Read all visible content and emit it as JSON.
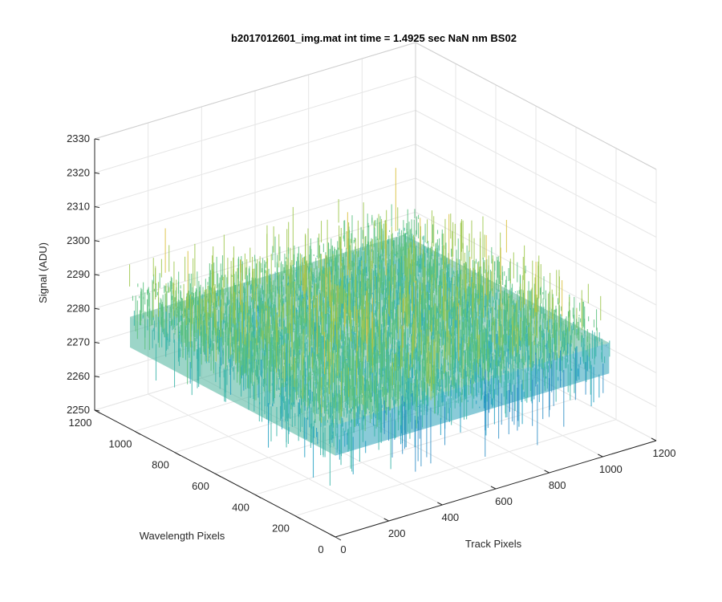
{
  "chart_data": {
    "type": "surface",
    "title": "b2017012601_img.mat int time = 1.4925 sec  NaN nm BS02",
    "xlabel": "Track Pixels",
    "ylabel": "Wavelength Pixels",
    "zlabel": "Signal (ADU)",
    "xlim": [
      0,
      1200
    ],
    "ylim": [
      0,
      1200
    ],
    "zlim": [
      2250,
      2330
    ],
    "xticks": [
      "0",
      "200",
      "400",
      "600",
      "800",
      "1000",
      "1200"
    ],
    "yticks": [
      "0",
      "200",
      "400",
      "600",
      "800",
      "1000",
      "1200"
    ],
    "zticks": [
      "2250",
      "2260",
      "2270",
      "2280",
      "2290",
      "2300",
      "2310",
      "2320",
      "2330"
    ],
    "data_extent": {
      "x": [
        0,
        1024
      ],
      "y": [
        0,
        1024
      ]
    },
    "z_mean_profile": {
      "note_range": "mean signal ≈ 2283 ADU, noise spans roughly 2262–2318 ADU",
      "mean": 2283,
      "min_approx": 2262,
      "max_approx": 2318
    },
    "colormap": [
      "#0072BD",
      "#1f9ec2",
      "#37b4a8",
      "#58c07c",
      "#9cc64a",
      "#d9bf3a",
      "#f0c341"
    ],
    "grid": true,
    "view": "3d-isometric"
  }
}
